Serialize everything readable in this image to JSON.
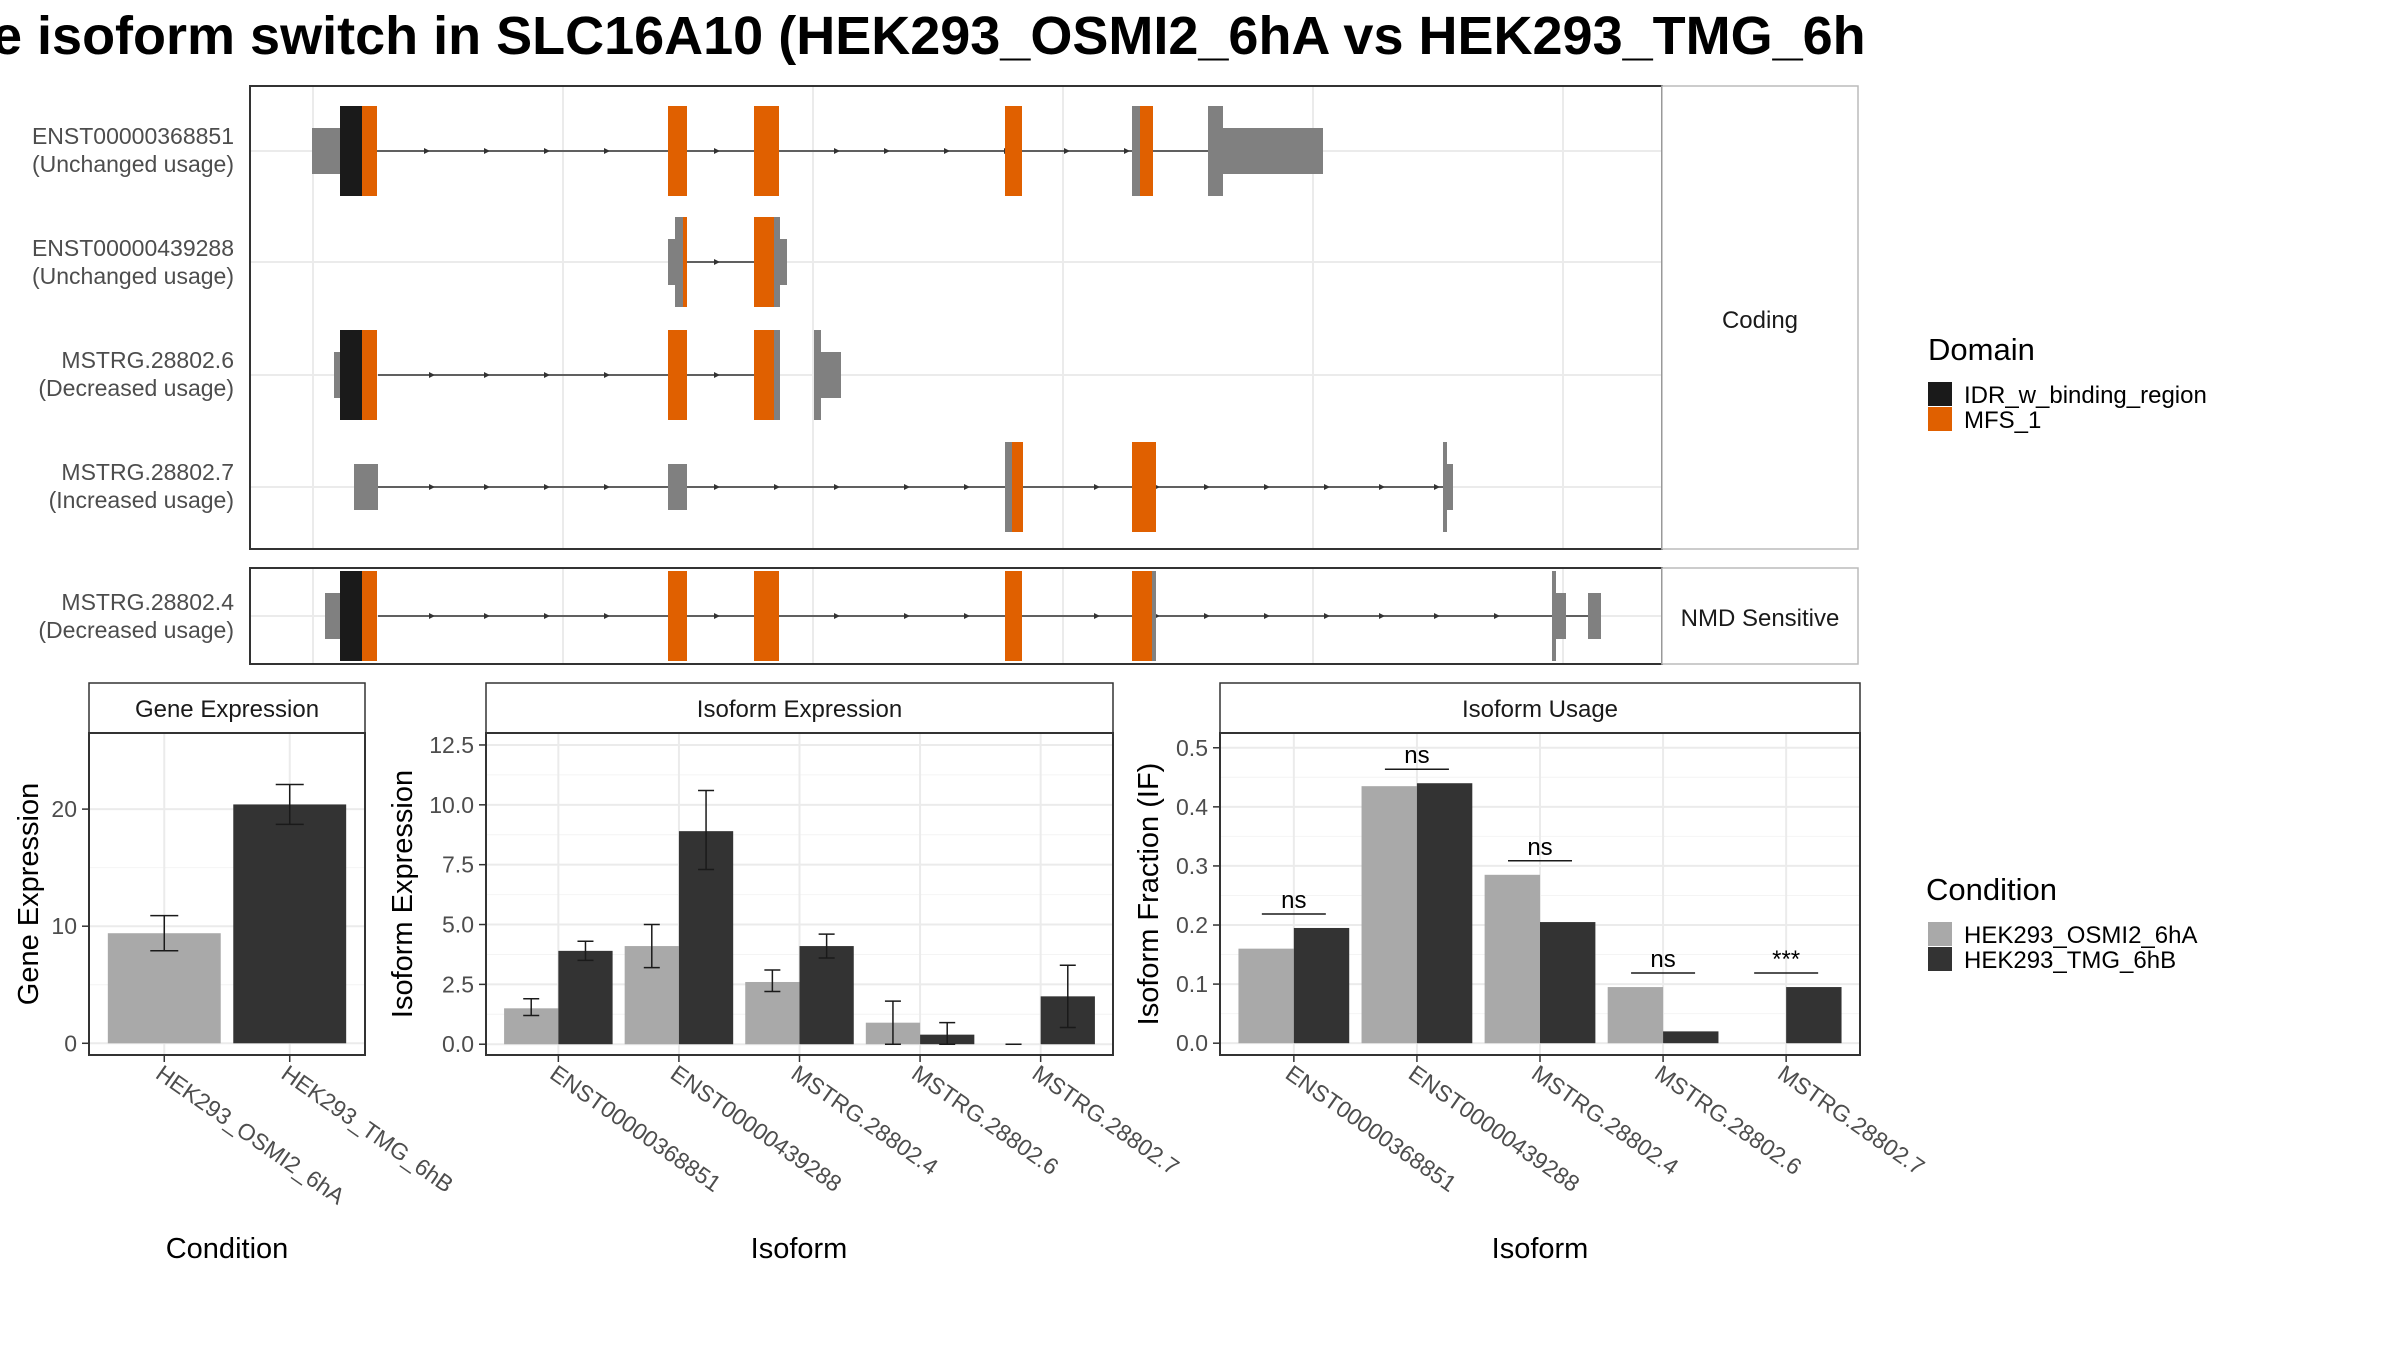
{
  "title": "e isoform switch in SLC16A10 (HEK293_OSMI2_6hA vs HEK293_TMG_6h",
  "legend_domain": {
    "title": "Domain",
    "items": [
      {
        "label": "IDR_w_binding_region",
        "color": "#1a1a1a"
      },
      {
        "label": "MFS_1",
        "color": "#e06000"
      }
    ]
  },
  "legend_condition": {
    "title": "Condition",
    "items": [
      {
        "label": "HEK293_OSMI2_6hA",
        "color": "#a9a9a9"
      },
      {
        "label": "HEK293_TMG_6hB",
        "color": "#333333"
      }
    ]
  },
  "structure": {
    "facets": [
      {
        "label": "Coding",
        "transcripts": [
          {
            "id": "ENST00000368851",
            "usage": "(Unchanged usage)"
          },
          {
            "id": "ENST00000439288",
            "usage": "(Unchanged usage)"
          },
          {
            "id": "MSTRG.28802.6",
            "usage": "(Decreased usage)"
          },
          {
            "id": "MSTRG.28802.7",
            "usage": "(Increased usage)"
          }
        ]
      },
      {
        "label": "NMD Sensitive",
        "transcripts": [
          {
            "id": "MSTRG.28802.4",
            "usage": "(Decreased usage)"
          }
        ]
      }
    ]
  },
  "chart_data": [
    {
      "type": "bar",
      "title": "Gene Expression",
      "xlabel": "Condition",
      "ylabel": "Gene Expression",
      "categories": [
        "HEK293_OSMI2_6hA",
        "HEK293_TMG_6hB"
      ],
      "values": [
        9.4,
        20.4
      ],
      "errors": [
        [
          7.9,
          10.9
        ],
        [
          18.7,
          22.1
        ]
      ],
      "colors": [
        "#a9a9a9",
        "#333333"
      ],
      "ylim": [
        -1,
        26.5
      ],
      "yticks": [
        0,
        10,
        20
      ],
      "ytick_labels": [
        "0",
        "10",
        "20"
      ],
      "grid": true
    },
    {
      "type": "bar",
      "title": "Isoform Expression",
      "xlabel": "Isoform",
      "ylabel": "Isoform Expression",
      "categories": [
        "ENST00000368851",
        "ENST00000439288",
        "MSTRG.28802.4",
        "MSTRG.28802.6",
        "MSTRG.28802.7"
      ],
      "series": [
        {
          "name": "HEK293_OSMI2_6hA",
          "values": [
            1.5,
            4.1,
            2.6,
            0.9,
            0.0
          ],
          "errors": [
            [
              1.2,
              1.9
            ],
            [
              3.2,
              5.0
            ],
            [
              2.2,
              3.1
            ],
            [
              0.0,
              1.8
            ],
            [
              0.0,
              0.0
            ]
          ]
        },
        {
          "name": "HEK293_TMG_6hB",
          "values": [
            3.9,
            8.9,
            4.1,
            0.4,
            2.0
          ],
          "errors": [
            [
              3.5,
              4.3
            ],
            [
              7.3,
              10.6
            ],
            [
              3.6,
              4.6
            ],
            [
              0.0,
              0.9
            ],
            [
              0.7,
              3.3
            ]
          ]
        }
      ],
      "ylim": [
        -0.45,
        13.0
      ],
      "yticks": [
        0,
        2.5,
        5,
        7.5,
        10,
        12.5
      ],
      "ytick_labels": [
        "0.0",
        "2.5",
        "5.0",
        "7.5",
        "10.0",
        "12.5"
      ],
      "grid": true
    },
    {
      "type": "bar",
      "title": "Isoform Usage",
      "xlabel": "Isoform",
      "ylabel": "Isoform Fraction (IF)",
      "categories": [
        "ENST00000368851",
        "ENST00000439288",
        "MSTRG.28802.4",
        "MSTRG.28802.6",
        "MSTRG.28802.7"
      ],
      "series": [
        {
          "name": "HEK293_OSMI2_6hA",
          "values": [
            0.16,
            0.435,
            0.285,
            0.095,
            0.0
          ]
        },
        {
          "name": "HEK293_TMG_6hB",
          "values": [
            0.195,
            0.44,
            0.205,
            0.02,
            0.095
          ]
        }
      ],
      "significance": [
        "ns",
        "ns",
        "ns",
        "ns",
        "***"
      ],
      "ylim": [
        -0.02,
        0.525
      ],
      "yticks": [
        0,
        0.1,
        0.2,
        0.3,
        0.4,
        0.5
      ],
      "ytick_labels": [
        "0.0",
        "0.1",
        "0.2",
        "0.3",
        "0.4",
        "0.5"
      ],
      "grid": true
    }
  ]
}
